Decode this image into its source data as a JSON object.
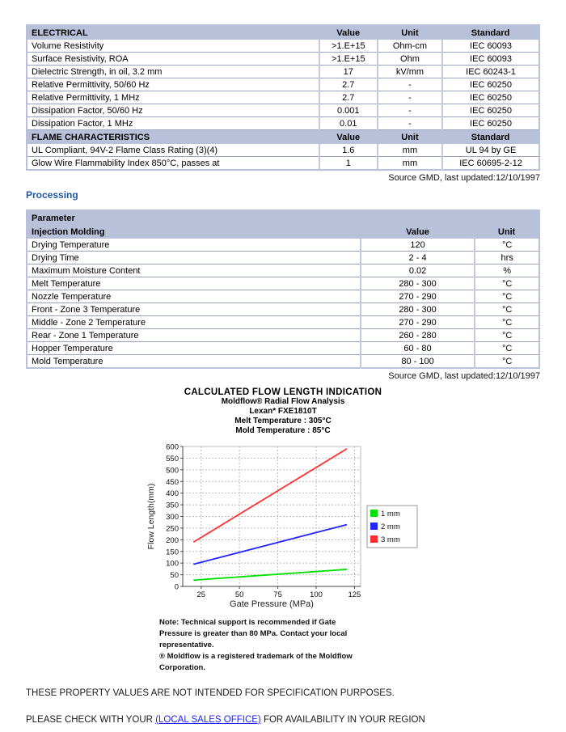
{
  "source_note": "Source GMD, last updated:12/10/1997",
  "processing_heading": "Processing",
  "tables": {
    "electrical": {
      "title": "ELECTRICAL",
      "columns": [
        "Value",
        "Unit",
        "Standard"
      ],
      "rows": [
        [
          "Volume Resistivity",
          ">1.E+15",
          "Ohm-cm",
          "IEC 60093"
        ],
        [
          "Surface Resistivity, ROA",
          ">1.E+15",
          "Ohm",
          "IEC 60093"
        ],
        [
          "Dielectric Strength, in oil, 3.2 mm",
          "17",
          "kV/mm",
          "IEC 60243-1"
        ],
        [
          "Relative Permittivity, 50/60 Hz",
          "2.7",
          "-",
          "IEC 60250"
        ],
        [
          "Relative Permittivity, 1 MHz",
          "2.7",
          "-",
          "IEC 60250"
        ],
        [
          "Dissipation Factor, 50/60 Hz",
          "0.001",
          "-",
          "IEC 60250"
        ],
        [
          "Dissipation Factor, 1 MHz",
          "0.01",
          "-",
          "IEC 60250"
        ]
      ]
    },
    "flame": {
      "title": "FLAME CHARACTERISTICS",
      "columns": [
        "Value",
        "Unit",
        "Standard"
      ],
      "rows": [
        [
          "UL Compliant, 94V-2 Flame Class Rating (3)(4)",
          "1.6",
          "mm",
          "UL 94 by GE"
        ],
        [
          "Glow Wire Flammability Index 850°C, passes at",
          "1",
          "mm",
          "IEC 60695-2-12"
        ]
      ]
    },
    "processing": {
      "group_title": "Parameter",
      "title": "Injection Molding",
      "columns": [
        "Value",
        "Unit"
      ],
      "rows": [
        [
          "Drying Temperature",
          "120",
          "°C"
        ],
        [
          "Drying Time",
          "2 - 4",
          "hrs"
        ],
        [
          "Maximum Moisture Content",
          "0.02",
          "%"
        ],
        [
          "Melt Temperature",
          "280 - 300",
          "°C"
        ],
        [
          "Nozzle Temperature",
          "270 - 290",
          "°C"
        ],
        [
          "Front - Zone 3 Temperature",
          "280 - 300",
          "°C"
        ],
        [
          "Middle - Zone 2 Temperature",
          "270 - 290",
          "°C"
        ],
        [
          "Rear - Zone 1 Temperature",
          "260 - 280",
          "°C"
        ],
        [
          "Hopper Temperature",
          "60 - 80",
          "°C"
        ],
        [
          "Mold Temperature",
          "80 - 100",
          "°C"
        ]
      ]
    }
  },
  "chart_data": {
    "type": "line",
    "title": "CALCULATED FLOW LENGTH INDICATION",
    "subtitles": [
      "Moldflow® Radial Flow Analysis",
      "Lexan* FXE1810T",
      "Melt Temperature : 305°C",
      "Mold Temperature : 85°C"
    ],
    "xlabel": "Gate Pressure (MPa)",
    "ylabel": "Flow Length(mm)",
    "xlim": [
      13,
      129
    ],
    "ylim": [
      0,
      600
    ],
    "xticks": [
      25,
      50,
      75,
      100,
      125
    ],
    "yticks": [
      0,
      50,
      100,
      150,
      200,
      250,
      300,
      350,
      400,
      450,
      500,
      550,
      600
    ],
    "grid": true,
    "legend_position": "right",
    "series": [
      {
        "name": "1 mm",
        "color": "#00e000",
        "points": [
          [
            20,
            27
          ],
          [
            120,
            73
          ]
        ]
      },
      {
        "name": "2 mm",
        "color": "#2424ff",
        "points": [
          [
            20,
            95
          ],
          [
            120,
            265
          ]
        ]
      },
      {
        "name": "3 mm",
        "color": "#ff3030",
        "points": [
          [
            20,
            190
          ],
          [
            120,
            590
          ]
        ]
      }
    ]
  },
  "chart_note": {
    "lines": [
      "Note:  Technical support is recommended if Gate",
      "Pressure is greater than 80 MPa. Contact your local",
      "representative.",
      "® Moldflow is a registered trademark of the Moldflow",
      "Corporation."
    ]
  },
  "footer": {
    "line1": "THESE PROPERTY VALUES ARE NOT INTENDED FOR SPECIFICATION PURPOSES.",
    "line2_prefix": "PLEASE CHECK WITH YOUR ",
    "link_label": "(LOCAL SALES OFFICE)",
    "line2_suffix": " FOR AVAILABILITY IN YOUR REGION"
  },
  "colors": {
    "table_header_bg": "#b9c1da",
    "table_border": "#b9c1da",
    "heading_blue": "#2057a7",
    "link_blue": "#2222ee",
    "grid_line": "#bbbbbb"
  }
}
